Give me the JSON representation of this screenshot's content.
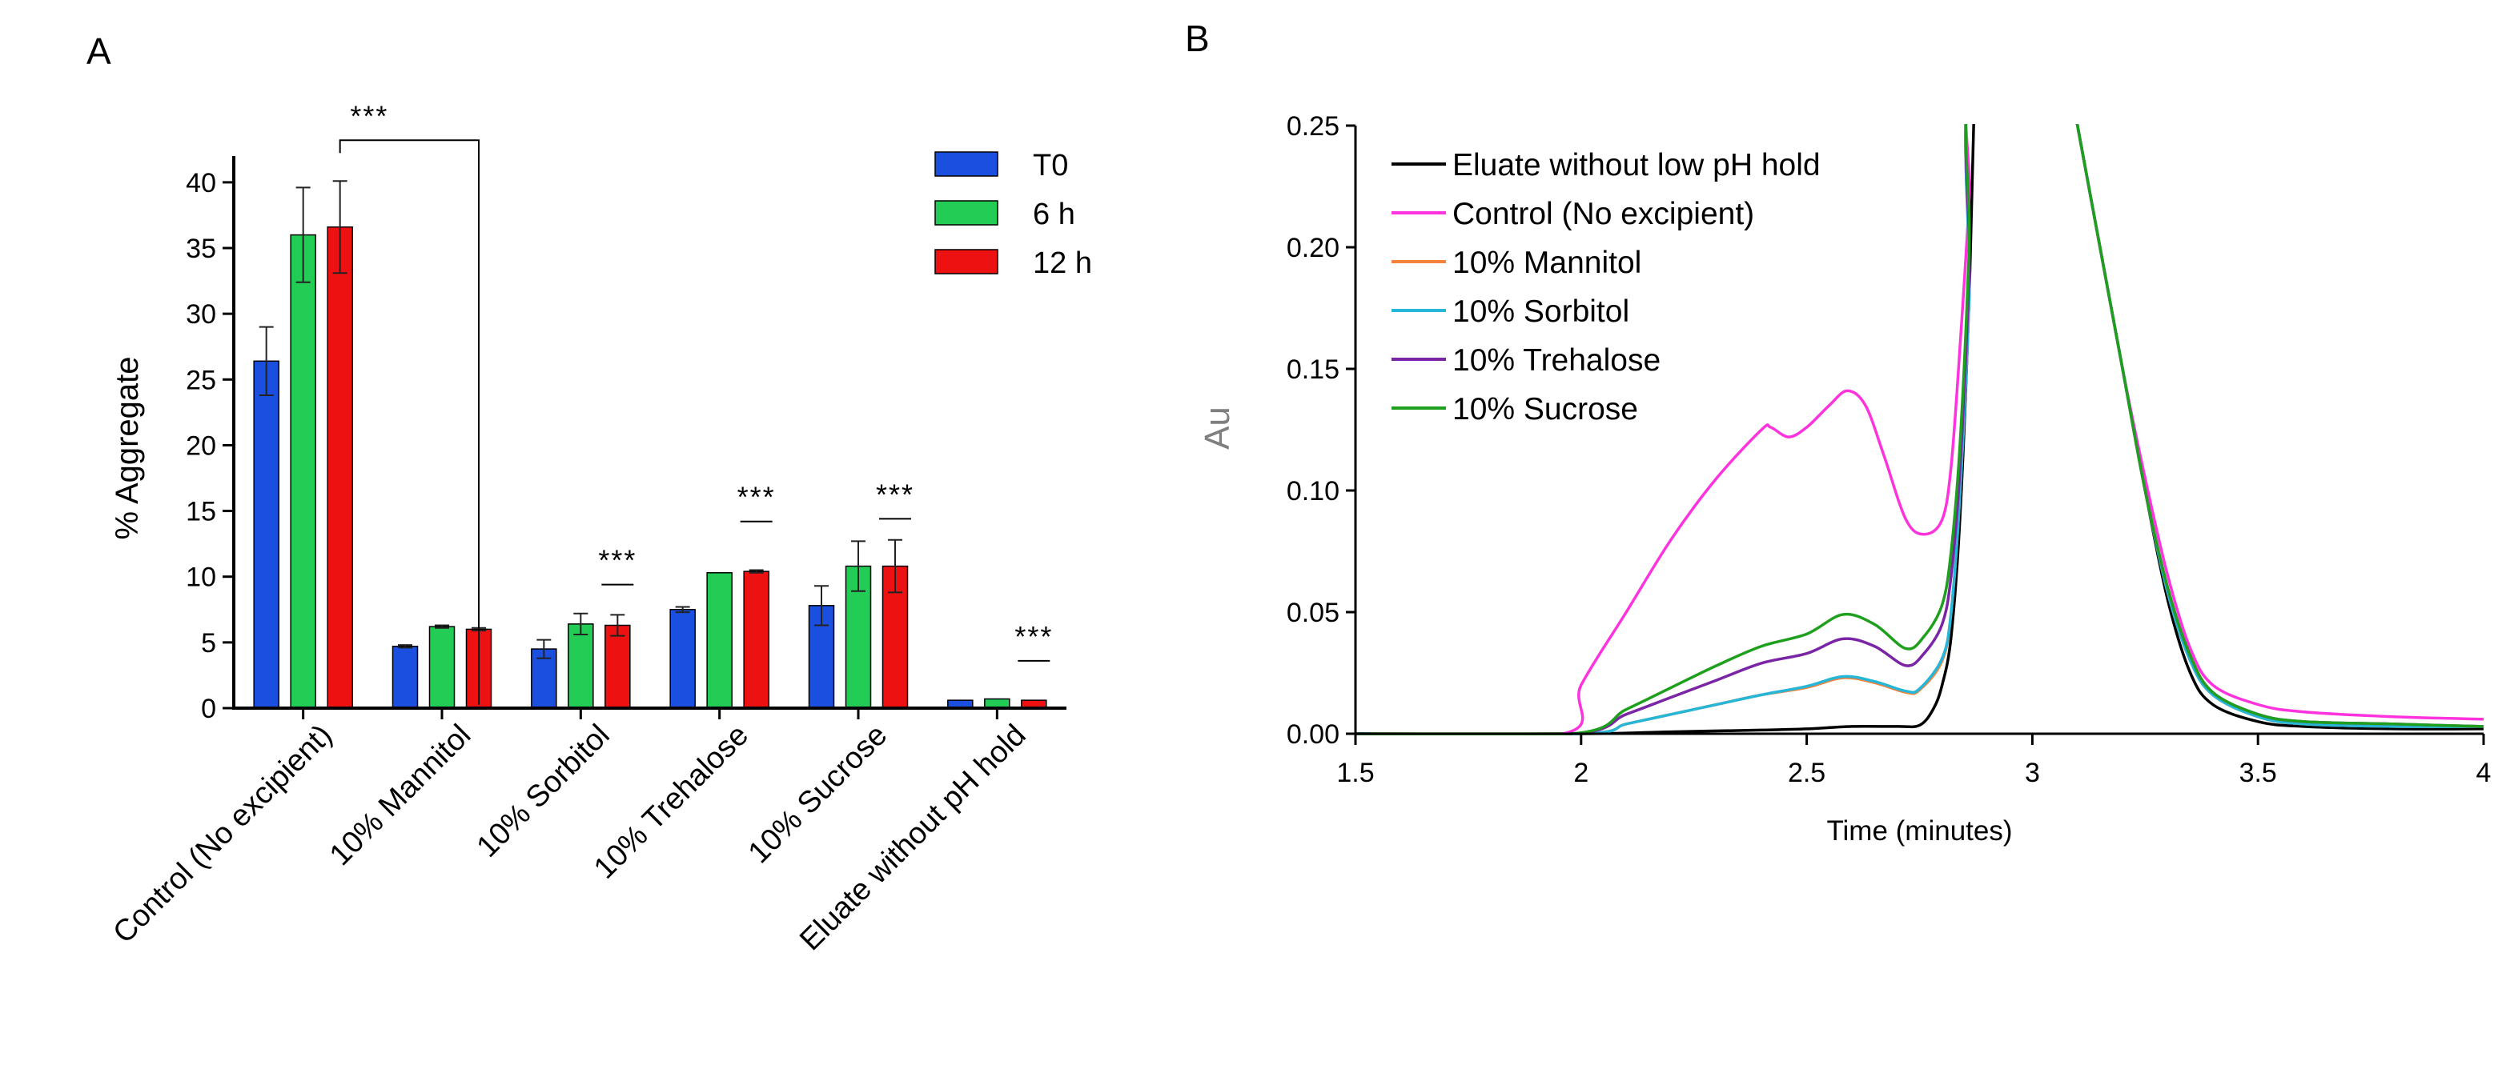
{
  "panel_a_label": "A",
  "panel_b_label": "B",
  "colors": {
    "T0": "#1a4fe0",
    "6 h": "#22cc55",
    "12 h": "#ee1111",
    "Eluate without low pH hold": "#000000",
    "Control (No excipient)": "#ff33dd",
    "10% Mannitol": "#f5823a",
    "10% Sorbitol": "#26b6d8",
    "10% Trehalose": "#7a25a5",
    "10% Sucrose": "#1ea01e"
  },
  "chart_data": [
    {
      "type": "bar",
      "title": "",
      "xlabel": "",
      "ylabel": "% Aggregate",
      "ylim": [
        0,
        42
      ],
      "yticks": [
        0,
        5,
        10,
        15,
        20,
        25,
        30,
        35,
        40
      ],
      "categories": [
        "Control (No excipient)",
        "10% Mannitol",
        "10% Sorbitol",
        "10% Trehalose",
        "10% Sucrose",
        "Eluate without pH hold"
      ],
      "series": [
        {
          "name": "T0",
          "values": [
            26.4,
            4.7,
            4.5,
            7.5,
            7.8,
            0.6
          ],
          "errors": [
            2.6,
            0.1,
            0.7,
            0.2,
            1.5,
            0.05
          ]
        },
        {
          "name": "6 h",
          "values": [
            36.0,
            6.2,
            6.4,
            10.3,
            10.8,
            0.7
          ],
          "errors": [
            3.6,
            0.1,
            0.8,
            0.05,
            1.9,
            0.05
          ]
        },
        {
          "name": "12 h",
          "values": [
            36.6,
            6.0,
            6.3,
            10.4,
            10.8,
            0.6
          ],
          "errors": [
            3.5,
            0.1,
            0.8,
            0.1,
            2.0,
            0.05
          ]
        }
      ],
      "legend": [
        "T0",
        "6 h",
        "12 h"
      ],
      "legend_position": "top-right",
      "annotations": [
        {
          "text": "***",
          "type": "bracket",
          "from_category": 0,
          "to_category": 1,
          "y": 43.2
        },
        {
          "text": "***",
          "type": "line",
          "category": 2,
          "y": 9.4
        },
        {
          "text": "***",
          "type": "line",
          "category": 3,
          "y": 14.2
        },
        {
          "text": "***",
          "type": "line",
          "category": 4,
          "y": 14.4
        },
        {
          "text": "***",
          "type": "line",
          "category": 5,
          "y": 3.6
        }
      ]
    },
    {
      "type": "line",
      "title": "",
      "xlabel": "Time (minutes)",
      "ylabel": "Au",
      "xlim": [
        1.5,
        4
      ],
      "ylim": [
        0,
        0.25
      ],
      "xticks": [
        "1.5",
        "2",
        "2.5",
        "3",
        "3.5",
        "4"
      ],
      "xtick_values": [
        1.5,
        2,
        2.5,
        3,
        3.5,
        4
      ],
      "yticks": [
        "0.00",
        "0.05",
        "0.10",
        "0.15",
        "0.20",
        "0.25"
      ],
      "ytick_values": [
        0,
        0.05,
        0.1,
        0.15,
        0.2,
        0.25
      ],
      "legend_position": "top-left",
      "series": [
        {
          "name": "Eluate without low pH hold",
          "x": [
            1.5,
            2.0,
            2.2,
            2.4,
            2.5,
            2.6,
            2.7,
            2.75,
            2.78,
            2.8,
            2.82,
            2.84,
            2.86,
            2.87,
            2.88,
            3.08,
            3.1,
            3.15,
            3.2,
            3.25,
            3.3,
            3.35,
            3.4,
            3.5,
            3.6,
            3.8,
            4.0
          ],
          "y": [
            0,
            0,
            0.0008,
            0.0015,
            0.002,
            0.003,
            0.003,
            0.0035,
            0.01,
            0.02,
            0.04,
            0.09,
            0.18,
            0.25,
            0.27,
            0.27,
            0.25,
            0.2,
            0.15,
            0.1,
            0.055,
            0.025,
            0.012,
            0.005,
            0.003,
            0.002,
            0.002
          ]
        },
        {
          "name": "Control (No excipient)",
          "x": [
            1.5,
            1.96,
            2.0,
            2.1,
            2.2,
            2.3,
            2.4,
            2.42,
            2.46,
            2.5,
            2.55,
            2.59,
            2.63,
            2.67,
            2.72,
            2.76,
            2.8,
            2.82,
            2.84,
            2.86,
            2.87,
            3.08,
            3.1,
            3.15,
            3.2,
            3.25,
            3.3,
            3.35,
            3.4,
            3.5,
            3.6,
            3.8,
            4.0
          ],
          "y": [
            0,
            0,
            0.02,
            0.05,
            0.08,
            0.105,
            0.125,
            0.126,
            0.122,
            0.126,
            0.135,
            0.141,
            0.135,
            0.115,
            0.088,
            0.082,
            0.088,
            0.11,
            0.16,
            0.22,
            0.27,
            0.27,
            0.25,
            0.2,
            0.15,
            0.105,
            0.065,
            0.035,
            0.02,
            0.012,
            0.009,
            0.007,
            0.006
          ]
        },
        {
          "name": "10% Mannitol",
          "x": [
            1.5,
            2.0,
            2.1,
            2.2,
            2.3,
            2.4,
            2.5,
            2.58,
            2.65,
            2.72,
            2.75,
            2.8,
            2.82,
            2.84,
            2.86,
            2.87,
            3.08,
            3.1,
            3.15,
            3.2,
            3.25,
            3.3,
            3.35,
            3.4,
            3.5,
            3.6,
            3.8,
            4.0
          ],
          "y": [
            0,
            0,
            0.004,
            0.008,
            0.012,
            0.016,
            0.019,
            0.023,
            0.021,
            0.017,
            0.018,
            0.03,
            0.05,
            0.1,
            0.18,
            0.27,
            0.27,
            0.25,
            0.2,
            0.15,
            0.1,
            0.058,
            0.03,
            0.016,
            0.007,
            0.004,
            0.003,
            0.003
          ]
        },
        {
          "name": "10% Sorbitol",
          "x": [
            1.5,
            2.0,
            2.1,
            2.2,
            2.3,
            2.4,
            2.5,
            2.58,
            2.65,
            2.72,
            2.75,
            2.8,
            2.82,
            2.84,
            2.86,
            2.87,
            3.08,
            3.1,
            3.15,
            3.2,
            3.25,
            3.3,
            3.35,
            3.4,
            3.5,
            3.6,
            3.8,
            4.0
          ],
          "y": [
            0,
            0,
            0.004,
            0.008,
            0.012,
            0.016,
            0.0195,
            0.0235,
            0.0215,
            0.0175,
            0.0185,
            0.031,
            0.05,
            0.1,
            0.18,
            0.27,
            0.27,
            0.25,
            0.2,
            0.15,
            0.1,
            0.058,
            0.03,
            0.016,
            0.007,
            0.004,
            0.003,
            0.003
          ]
        },
        {
          "name": "10% Trehalose",
          "x": [
            1.5,
            1.98,
            2.1,
            2.2,
            2.3,
            2.4,
            2.5,
            2.58,
            2.65,
            2.72,
            2.76,
            2.8,
            2.82,
            2.84,
            2.86,
            2.87,
            3.08,
            3.1,
            3.15,
            3.2,
            3.25,
            3.3,
            3.35,
            3.4,
            3.5,
            3.6,
            3.8,
            4.0
          ],
          "y": [
            0,
            0,
            0.008,
            0.015,
            0.022,
            0.029,
            0.033,
            0.039,
            0.036,
            0.028,
            0.033,
            0.045,
            0.065,
            0.11,
            0.19,
            0.27,
            0.27,
            0.25,
            0.2,
            0.15,
            0.1,
            0.06,
            0.032,
            0.017,
            0.008,
            0.005,
            0.004,
            0.003
          ]
        },
        {
          "name": "10% Sucrose",
          "x": [
            1.5,
            1.98,
            2.1,
            2.2,
            2.3,
            2.4,
            2.5,
            2.58,
            2.65,
            2.72,
            2.76,
            2.8,
            2.82,
            2.84,
            2.86,
            2.87,
            3.08,
            3.1,
            3.15,
            3.2,
            3.25,
            3.3,
            3.35,
            3.4,
            3.5,
            3.6,
            3.8,
            4.0
          ],
          "y": [
            0,
            0,
            0.01,
            0.019,
            0.028,
            0.036,
            0.041,
            0.049,
            0.045,
            0.035,
            0.04,
            0.053,
            0.075,
            0.12,
            0.2,
            0.27,
            0.27,
            0.25,
            0.2,
            0.15,
            0.1,
            0.06,
            0.032,
            0.017,
            0.008,
            0.005,
            0.004,
            0.003
          ]
        }
      ]
    }
  ]
}
